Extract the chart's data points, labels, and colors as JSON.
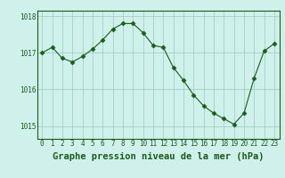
{
  "hours": [
    0,
    1,
    2,
    3,
    4,
    5,
    6,
    7,
    8,
    9,
    10,
    11,
    12,
    13,
    14,
    15,
    16,
    17,
    18,
    19,
    20,
    21,
    22,
    23
  ],
  "pressure": [
    1017.0,
    1017.15,
    1016.85,
    1016.75,
    1016.9,
    1017.1,
    1017.35,
    1017.65,
    1017.8,
    1017.8,
    1017.55,
    1017.2,
    1017.15,
    1016.6,
    1016.25,
    1015.85,
    1015.55,
    1015.35,
    1015.2,
    1015.05,
    1015.35,
    1016.3,
    1017.05,
    1017.25
  ],
  "line_color": "#1a5c1a",
  "marker": "D",
  "marker_size": 2.5,
  "background_color": "#cff0eb",
  "grid_color": "#99ccbb",
  "xlabel": "Graphe pression niveau de la mer (hPa)",
  "ylim": [
    1014.65,
    1018.15
  ],
  "yticks": [
    1015,
    1016,
    1017,
    1018
  ],
  "xticks": [
    0,
    1,
    2,
    3,
    4,
    5,
    6,
    7,
    8,
    9,
    10,
    11,
    12,
    13,
    14,
    15,
    16,
    17,
    18,
    19,
    20,
    21,
    22,
    23
  ],
  "tick_label_color": "#1a5c1a",
  "tick_label_size": 5.5,
  "xlabel_fontsize": 7.5,
  "xlabel_fontweight": "bold",
  "border_color": "#1a5c1a",
  "linewidth": 0.8
}
